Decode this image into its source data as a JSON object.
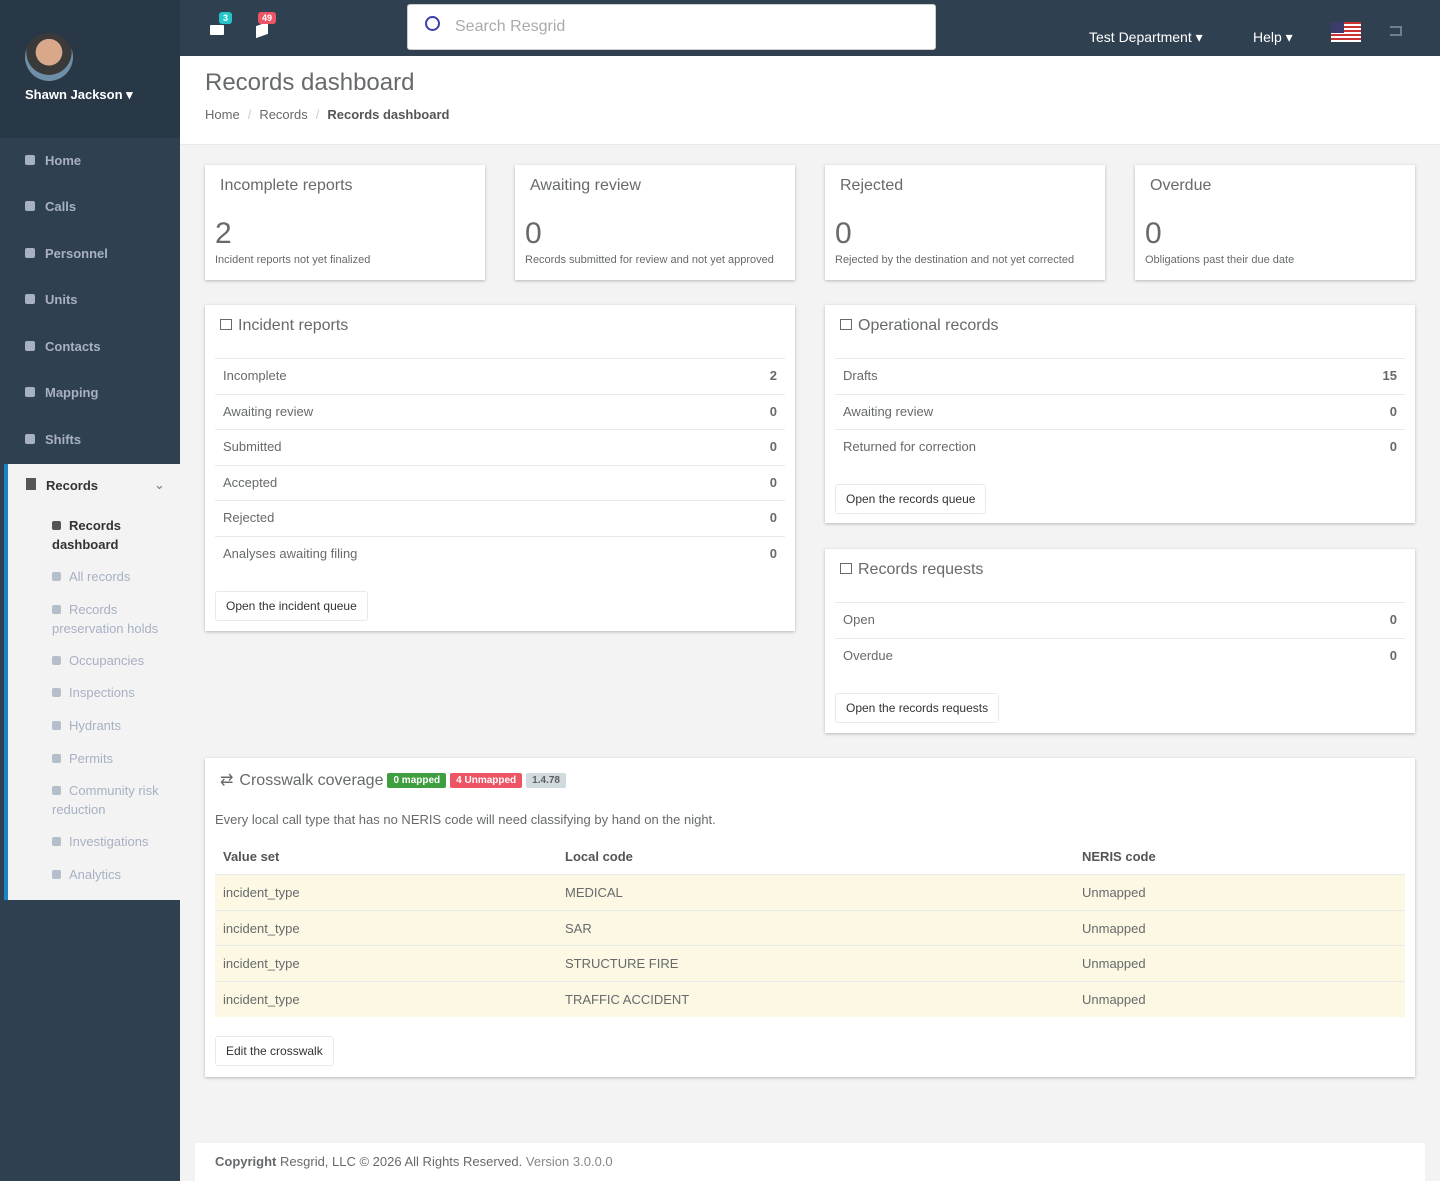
{
  "user": {
    "name": "Shawn Jackson"
  },
  "topbar": {
    "mail_count": 3,
    "alert_count": 49,
    "search_placeholder": "Search Resgrid",
    "department": "Test Department",
    "help": "Help"
  },
  "nav": [
    "Home",
    "Calls",
    "Personnel",
    "Units",
    "Contacts",
    "Mapping",
    "Shifts"
  ],
  "records_nav": {
    "label": "Records",
    "items": [
      "Records dashboard",
      "All records",
      "Records preservation holds",
      "Occupancies",
      "Inspections",
      "Hydrants",
      "Permits",
      "Community risk reduction",
      "Investigations",
      "Analytics"
    ]
  },
  "header": {
    "title": "Records dashboard",
    "breadcrumb": [
      "Home",
      "Records",
      "Records dashboard"
    ]
  },
  "stats": [
    {
      "title": "Incomplete reports",
      "value": 2,
      "caption": "Incident reports not yet finalized"
    },
    {
      "title": "Awaiting review",
      "value": 0,
      "caption": "Records submitted for review and not yet approved"
    },
    {
      "title": "Rejected",
      "value": 0,
      "caption": "Rejected by the destination and not yet corrected"
    },
    {
      "title": "Overdue",
      "value": 0,
      "caption": "Obligations past their due date"
    }
  ],
  "incident_reports": {
    "title": "Incident reports",
    "rows": [
      {
        "label": "Incomplete",
        "value": 2
      },
      {
        "label": "Awaiting review",
        "value": 0
      },
      {
        "label": "Submitted",
        "value": 0
      },
      {
        "label": "Accepted",
        "value": 0
      },
      {
        "label": "Rejected",
        "value": 0
      },
      {
        "label": "Analyses awaiting filing",
        "value": 0
      }
    ],
    "button": "Open the incident queue"
  },
  "operational_records": {
    "title": "Operational records",
    "rows": [
      {
        "label": "Drafts",
        "value": 15
      },
      {
        "label": "Awaiting review",
        "value": 0
      },
      {
        "label": "Returned for correction",
        "value": 0
      }
    ],
    "button": "Open the records queue"
  },
  "records_requests": {
    "title": "Records requests",
    "rows": [
      {
        "label": "Open",
        "value": 0
      },
      {
        "label": "Overdue",
        "value": 0
      }
    ],
    "button": "Open the records requests"
  },
  "crosswalk": {
    "title": "Crosswalk coverage",
    "badges": [
      "0 mapped",
      "4 Unmapped",
      "1.4.78"
    ],
    "description": "Every local call type that has no NERIS code will need classifying by hand on the night.",
    "columns": [
      "Value set",
      "Local code",
      "NERIS code"
    ],
    "rows": [
      [
        "incident_type",
        "MEDICAL",
        "Unmapped"
      ],
      [
        "incident_type",
        "SAR",
        "Unmapped"
      ],
      [
        "incident_type",
        "STRUCTURE FIRE",
        "Unmapped"
      ],
      [
        "incident_type",
        "TRAFFIC ACCIDENT",
        "Unmapped"
      ]
    ],
    "button": "Edit the crosswalk"
  },
  "footer": {
    "copyright": "Copyright",
    "text": "Resgrid, LLC © 2026 All Rights Reserved.",
    "version": "Version 3.0.0.0"
  }
}
